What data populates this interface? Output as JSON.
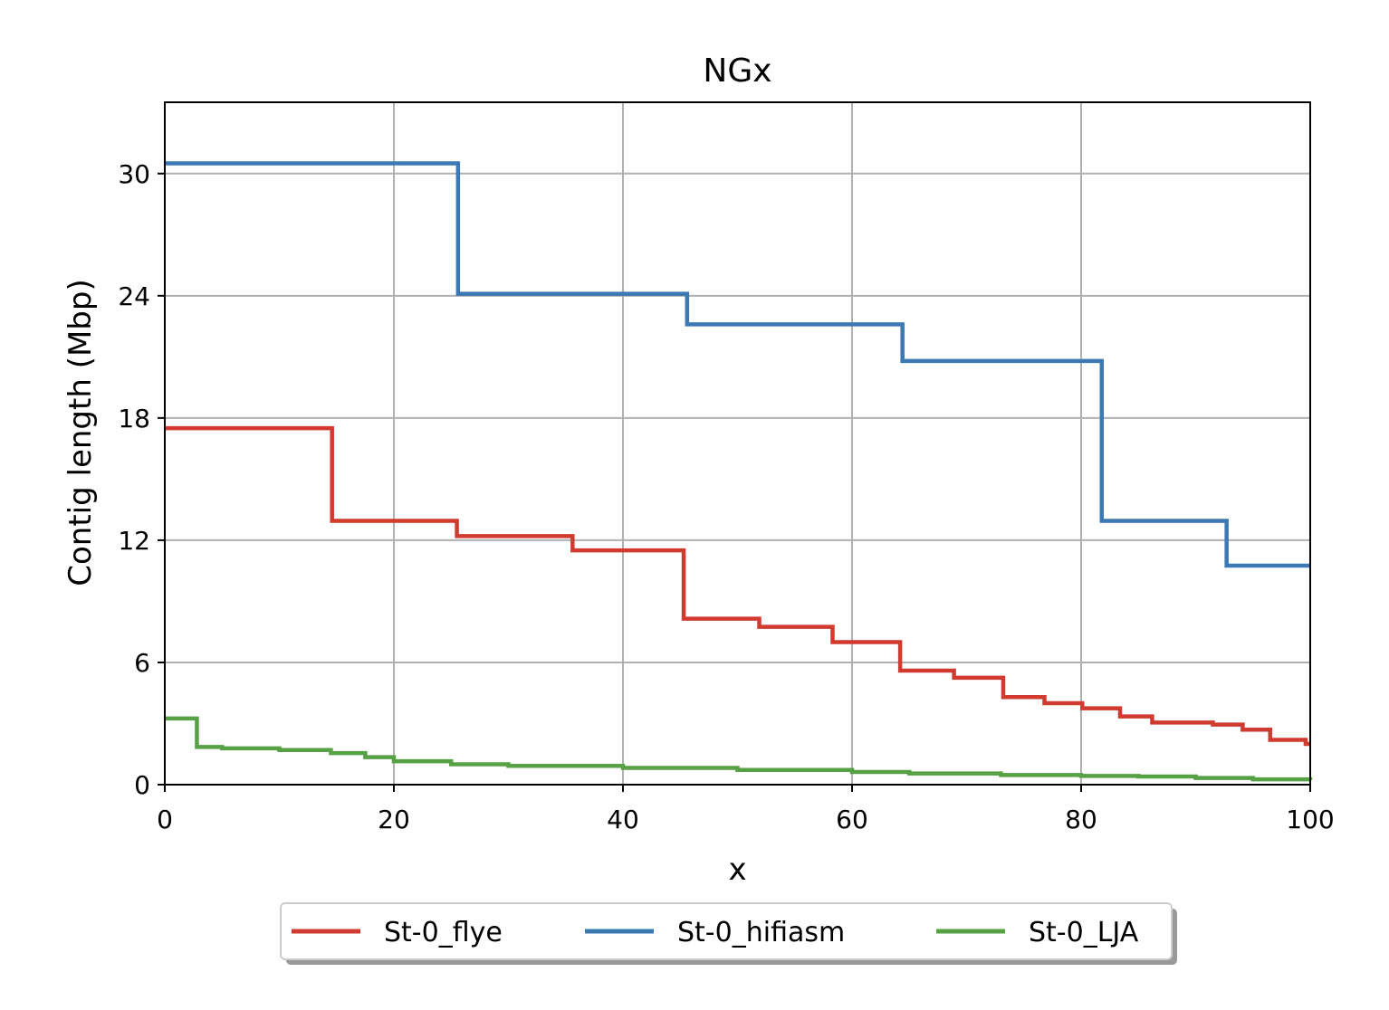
{
  "chart_data": {
    "type": "line",
    "title": "NGx",
    "xlabel": "x",
    "ylabel": "Contig length (Mbp)",
    "xlim": [
      0,
      100
    ],
    "ylim": [
      0,
      33.5
    ],
    "xticks": [
      0,
      20,
      40,
      60,
      80,
      100
    ],
    "xtick_labels": [
      "0",
      "20",
      "40",
      "60",
      "80",
      "100"
    ],
    "yticks": [
      0,
      6,
      12,
      18,
      24,
      30
    ],
    "ytick_labels": [
      "0",
      "6",
      "12",
      "18",
      "24",
      "30"
    ],
    "grid": true,
    "legend_position": "bottom, below plot",
    "series": [
      {
        "name": "St-0_flye",
        "color": "#d13a2f",
        "step": true,
        "x": [
          0,
          14.6,
          25.5,
          35.6,
          45.3,
          51.9,
          58.3,
          64.2,
          68.9,
          73.2,
          76.8,
          80.1,
          83.4,
          86.2,
          91.5,
          94.1,
          96.5,
          99.6,
          100
        ],
        "y": [
          17.5,
          12.95,
          12.2,
          11.5,
          8.15,
          7.75,
          7.0,
          5.6,
          5.25,
          4.3,
          4.0,
          3.75,
          3.35,
          3.05,
          2.95,
          2.7,
          2.2,
          2.0,
          2.0
        ]
      },
      {
        "name": "St-0_hifiasm",
        "color": "#3c78b3",
        "step": true,
        "x": [
          0,
          25.6,
          45.6,
          64.4,
          81.8,
          92.7,
          100
        ],
        "y": [
          30.5,
          24.1,
          22.6,
          20.8,
          12.95,
          10.75,
          10.75
        ]
      },
      {
        "name": "St-0_LJA",
        "color": "#56a144",
        "step": true,
        "x": [
          0,
          2.8,
          5,
          10,
          14.5,
          17.5,
          20,
          25,
          30,
          40,
          50,
          60,
          65,
          73,
          80,
          85,
          90,
          95,
          100
        ],
        "y": [
          3.25,
          1.85,
          1.78,
          1.7,
          1.55,
          1.35,
          1.15,
          1.0,
          0.92,
          0.82,
          0.72,
          0.62,
          0.55,
          0.47,
          0.43,
          0.4,
          0.33,
          0.26,
          0.22
        ]
      }
    ]
  }
}
